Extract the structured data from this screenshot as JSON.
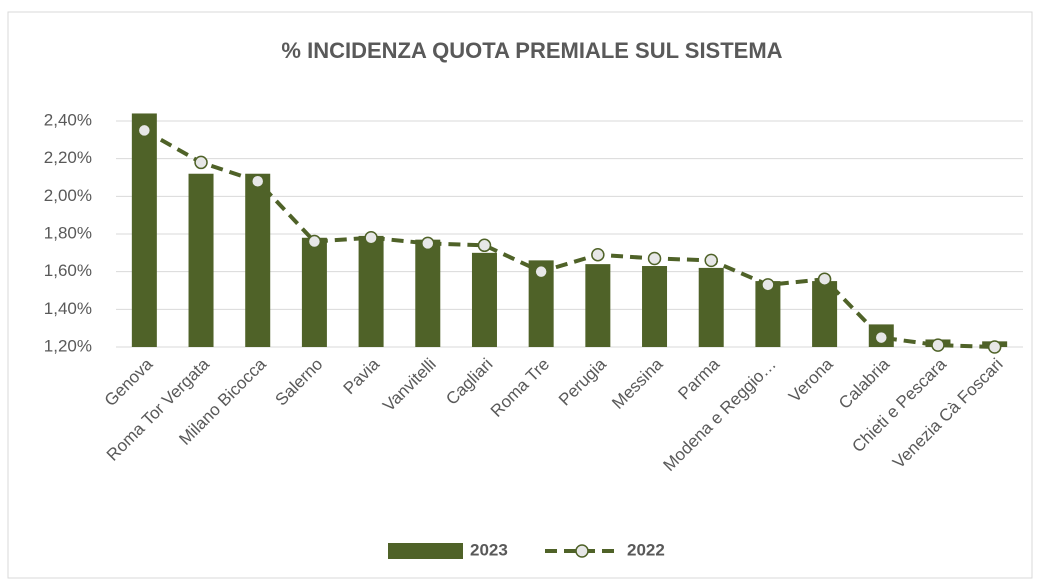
{
  "chart_data": {
    "type": "combo",
    "title": "% INCIDENZA QUOTA PREMIALE SUL SISTEMA",
    "categories": [
      "Genova",
      "Roma Tor Vergata",
      "Milano Bicocca",
      "Salerno",
      "Pavia",
      "Vanvitelli",
      "Cagliari",
      "Roma Tre",
      "Perugia",
      "Messina",
      "Parma",
      "Modena e Reggio…",
      "Verona",
      "Calabria",
      "Chieti e Pescara",
      "Venezia Cà Foscari"
    ],
    "series": [
      {
        "name": "2023",
        "type": "bar",
        "color": "#4f6228",
        "values": [
          2.44,
          2.12,
          2.12,
          1.78,
          1.79,
          1.77,
          1.7,
          1.66,
          1.64,
          1.63,
          1.62,
          1.55,
          1.55,
          1.32,
          1.24,
          1.23
        ]
      },
      {
        "name": "2022",
        "type": "line",
        "color": "#4f6228",
        "values": [
          2.35,
          2.18,
          2.08,
          1.76,
          1.78,
          1.75,
          1.74,
          1.6,
          1.69,
          1.67,
          1.66,
          1.53,
          1.56,
          1.25,
          1.21,
          1.2
        ]
      }
    ],
    "ylim": [
      1.2,
      2.4
    ],
    "yticks": [
      {
        "value": 1.2,
        "label": "1,20%"
      },
      {
        "value": 1.4,
        "label": "1,40%"
      },
      {
        "value": 1.6,
        "label": "1,60%"
      },
      {
        "value": 1.8,
        "label": "1,80%"
      },
      {
        "value": 2.0,
        "label": "2,00%"
      },
      {
        "value": 2.2,
        "label": "2,20%"
      },
      {
        "value": 2.4,
        "label": "2,40%"
      }
    ],
    "grid": true,
    "legend": "bottom"
  }
}
